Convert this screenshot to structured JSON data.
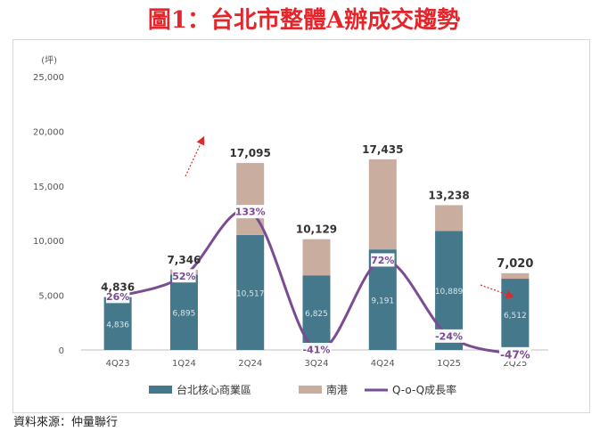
{
  "title": "圖1：台北市整體A辦成交趨勢",
  "source_note": "資料來源：仲量聯行",
  "colors": {
    "core": "#44788a",
    "nangang": "#c9ad9f",
    "qoq": "#7a4c91",
    "title": "#e4262c",
    "arrow": "#e02a2a"
  },
  "chart_data": {
    "type": "bar",
    "stacked": true,
    "title": "台北市整體A辦成交趨勢",
    "unit_label": "(坪)",
    "categories": [
      "4Q23",
      "1Q24",
      "2Q24",
      "3Q24",
      "4Q24",
      "1Q25",
      "2Q25"
    ],
    "series": [
      {
        "name": "台北核心商業區",
        "values": [
          4836,
          6895,
          10517,
          6825,
          9191,
          10889,
          6512
        ],
        "labels": [
          "4,836",
          "6,895",
          "10,517",
          "6,825",
          "9,191",
          "10,889",
          "6,512"
        ]
      },
      {
        "name": "南港",
        "values": [
          0,
          451,
          6578,
          3304,
          8244,
          2349,
          508
        ]
      }
    ],
    "totals": [
      4836,
      7346,
      17095,
      10129,
      17435,
      13238,
      7020
    ],
    "total_labels": [
      "4,836",
      "7,346",
      "17,095",
      "10,129",
      "17,435",
      "13,238",
      "7,020"
    ],
    "qoq": {
      "name": "Q-o-Q成長率",
      "values": [
        26,
        52,
        133,
        -41,
        72,
        -24,
        -47
      ],
      "labels": [
        "26%",
        "52%",
        "133%",
        "-41%",
        "72%",
        "-24%",
        "-47%"
      ]
    },
    "ylim": [
      0,
      25000
    ],
    "yticks": [
      0,
      5000,
      10000,
      15000,
      20000,
      25000
    ],
    "ytick_labels": [
      "0",
      "5,000",
      "10,000",
      "15,000",
      "20,000",
      "25,000"
    ],
    "legend": [
      "台北核心商業區",
      "南港",
      "Q-o-Q成長率"
    ],
    "legend_position": "bottom"
  }
}
